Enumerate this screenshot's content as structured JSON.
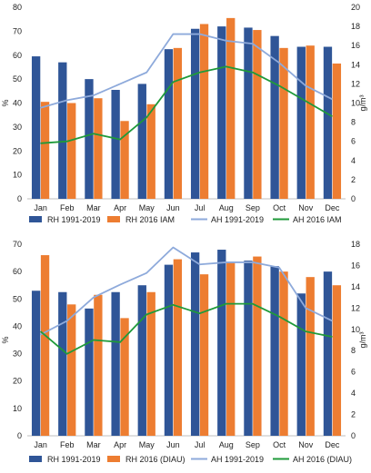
{
  "chart_data": [
    {
      "type": "bar",
      "categories": [
        "Jan",
        "Feb",
        "Mar",
        "Apr",
        "May",
        "Jun",
        "Jul",
        "Aug",
        "Sep",
        "Oct",
        "Nov",
        "Dec"
      ],
      "ylabel": "%",
      "y2label": "g/m³",
      "ylim": [
        0,
        80
      ],
      "y2lim": [
        0,
        20
      ],
      "yticks": [
        0,
        10,
        20,
        30,
        40,
        50,
        60,
        70,
        80
      ],
      "y2ticks": [
        0,
        2,
        4,
        6,
        8,
        10,
        12,
        14,
        16,
        18,
        20
      ],
      "legend_position": "bottom",
      "grid": false,
      "series": [
        {
          "name": "RH 1991-2019",
          "kind": "bar",
          "axis": "left",
          "color": "#2f5597",
          "values": [
            59.5,
            57,
            50,
            45.5,
            48,
            62.5,
            71,
            72,
            71.5,
            68,
            63.5,
            63.5
          ]
        },
        {
          "name": "RH 2016 IAM",
          "kind": "bar",
          "axis": "left",
          "color": "#ed7d31",
          "values": [
            40.5,
            40,
            42,
            32.5,
            39.5,
            63,
            73,
            75.5,
            70.5,
            63,
            64,
            56.5
          ]
        },
        {
          "name": "AH 1991-2019",
          "kind": "line",
          "axis": "right",
          "color": "#8eaadb",
          "values": [
            9.5,
            10.3,
            10.8,
            12,
            13.2,
            17.2,
            17.2,
            16.5,
            16.2,
            14.2,
            11.8,
            10.4
          ]
        },
        {
          "name": "AH 2016 IAM",
          "kind": "line",
          "axis": "right",
          "color": "#1f9a3a",
          "values": [
            5.8,
            6,
            6.8,
            6.2,
            8.5,
            12.2,
            13.2,
            13.8,
            13.2,
            11.8,
            10.2,
            8.6
          ]
        }
      ]
    },
    {
      "type": "bar",
      "categories": [
        "Jan",
        "Feb",
        "Mar",
        "Apr",
        "May",
        "Jun",
        "Jul",
        "Aug",
        "Sep",
        "Oct",
        "Nov",
        "Dec"
      ],
      "ylabel": "%",
      "y2label": "g/m³",
      "ylim": [
        0,
        70
      ],
      "y2lim": [
        0,
        18
      ],
      "yticks": [
        0,
        10,
        20,
        30,
        40,
        50,
        60,
        70
      ],
      "y2ticks": [
        0,
        2,
        4,
        6,
        8,
        10,
        12,
        14,
        16,
        18
      ],
      "legend_position": "bottom",
      "grid": false,
      "series": [
        {
          "name": "RH 1991-2019",
          "kind": "bar",
          "axis": "left",
          "color": "#2f5597",
          "values": [
            53,
            52.5,
            46.5,
            52.5,
            55,
            62.5,
            67,
            68,
            64,
            62,
            52,
            60
          ]
        },
        {
          "name": "RH 2016 (DIAU)",
          "kind": "bar",
          "axis": "left",
          "color": "#ed7d31",
          "values": [
            66,
            48,
            51.5,
            43,
            52.5,
            64.5,
            59,
            63.5,
            65.5,
            60,
            58,
            55
          ]
        },
        {
          "name": "AH 1991-2019",
          "kind": "line",
          "axis": "right",
          "color": "#8eaadb",
          "values": [
            9.5,
            10.8,
            13,
            14.2,
            15.3,
            17.7,
            16.1,
            16.3,
            16.3,
            15.8,
            12,
            10.8
          ]
        },
        {
          "name": "AH 2016 (DIAU)",
          "kind": "line",
          "axis": "right",
          "color": "#1f9a3a",
          "values": [
            9.8,
            7.7,
            9,
            8.8,
            11.4,
            12.3,
            11.5,
            12.4,
            12.4,
            11.2,
            9.8,
            9.3
          ]
        }
      ]
    }
  ]
}
